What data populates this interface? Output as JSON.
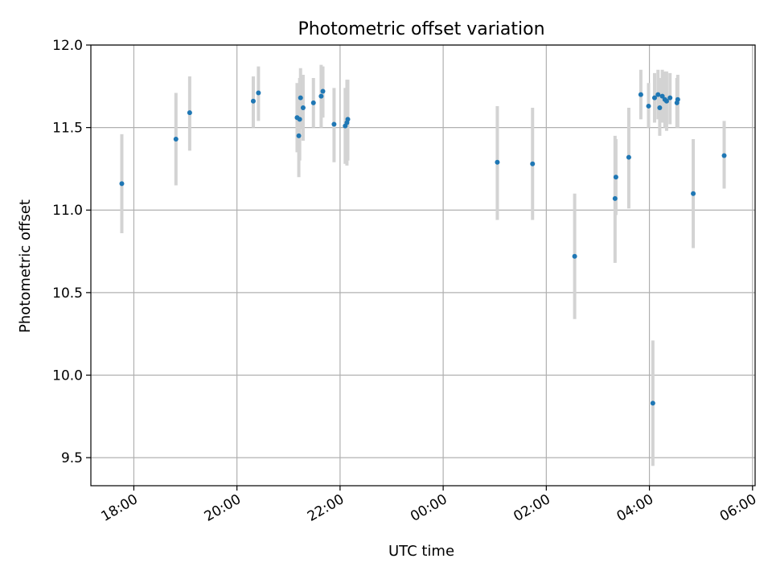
{
  "chart_data": {
    "type": "scatter",
    "title": "Photometric offset variation",
    "xlabel": "UTC time",
    "ylabel": "Photometric offset",
    "xlim": [
      "17:10",
      "30:03"
    ],
    "ylim": [
      9.33,
      12.0
    ],
    "xticks": [
      {
        "value": "18:00",
        "label": "18:00"
      },
      {
        "value": "20:00",
        "label": "20:00"
      },
      {
        "value": "22:00",
        "label": "22:00"
      },
      {
        "value": "24:00",
        "label": "00:00"
      },
      {
        "value": "26:00",
        "label": "02:00"
      },
      {
        "value": "28:00",
        "label": "04:00"
      },
      {
        "value": "30:00",
        "label": "06:00"
      }
    ],
    "yticks": [
      {
        "value": 9.5,
        "label": "9.5"
      },
      {
        "value": 10.0,
        "label": "10.0"
      },
      {
        "value": 10.5,
        "label": "10.5"
      },
      {
        "value": 11.0,
        "label": "11.0"
      },
      {
        "value": 11.5,
        "label": "11.5"
      },
      {
        "value": 12.0,
        "label": "12.0"
      }
    ],
    "grid": true,
    "colors": {
      "point": "#1f77b4",
      "errorbar": "#d3d3d3",
      "grid": "#b0b0b0"
    },
    "series": [
      {
        "points": [
          {
            "x": "17:46",
            "y": 11.16,
            "lo": 10.86,
            "hi": 11.46
          },
          {
            "x": "18:49",
            "y": 11.43,
            "lo": 11.15,
            "hi": 11.71
          },
          {
            "x": "19:05",
            "y": 11.59,
            "lo": 11.36,
            "hi": 11.81
          },
          {
            "x": "20:19",
            "y": 11.66,
            "lo": 11.5,
            "hi": 11.81
          },
          {
            "x": "20:25",
            "y": 11.71,
            "lo": 11.54,
            "hi": 11.87
          },
          {
            "x": "21:10",
            "y": 11.56,
            "lo": 11.35,
            "hi": 11.77
          },
          {
            "x": "21:12",
            "y": 11.45,
            "lo": 11.2,
            "hi": 11.7
          },
          {
            "x": "21:13",
            "y": 11.55,
            "lo": 11.3,
            "hi": 11.8
          },
          {
            "x": "21:14",
            "y": 11.68,
            "lo": 11.49,
            "hi": 11.86
          },
          {
            "x": "21:17",
            "y": 11.62,
            "lo": 11.42,
            "hi": 11.82
          },
          {
            "x": "21:29",
            "y": 11.65,
            "lo": 11.5,
            "hi": 11.8
          },
          {
            "x": "21:38",
            "y": 11.69,
            "lo": 11.5,
            "hi": 11.88
          },
          {
            "x": "21:40",
            "y": 11.72,
            "lo": 11.56,
            "hi": 11.87
          },
          {
            "x": "21:53",
            "y": 11.52,
            "lo": 11.29,
            "hi": 11.74
          },
          {
            "x": "22:06",
            "y": 11.51,
            "lo": 11.28,
            "hi": 11.74
          },
          {
            "x": "22:08",
            "y": 11.53,
            "lo": 11.27,
            "hi": 11.79
          },
          {
            "x": "22:09",
            "y": 11.55,
            "lo": 11.3,
            "hi": 11.79
          },
          {
            "x": "25:03",
            "y": 11.29,
            "lo": 10.94,
            "hi": 11.63
          },
          {
            "x": "25:44",
            "y": 11.28,
            "lo": 10.94,
            "hi": 11.62
          },
          {
            "x": "26:33",
            "y": 10.72,
            "lo": 10.34,
            "hi": 11.1
          },
          {
            "x": "27:20",
            "y": 11.07,
            "lo": 10.68,
            "hi": 11.45
          },
          {
            "x": "27:21",
            "y": 11.2,
            "lo": 10.97,
            "hi": 11.43
          },
          {
            "x": "27:36",
            "y": 11.32,
            "lo": 11.01,
            "hi": 11.62
          },
          {
            "x": "27:50",
            "y": 11.7,
            "lo": 11.55,
            "hi": 11.85
          },
          {
            "x": "27:59",
            "y": 11.63,
            "lo": 11.5,
            "hi": 11.77
          },
          {
            "x": "28:04",
            "y": 9.83,
            "lo": 9.45,
            "hi": 10.21
          },
          {
            "x": "28:06",
            "y": 11.68,
            "lo": 11.53,
            "hi": 11.83
          },
          {
            "x": "28:10",
            "y": 11.7,
            "lo": 11.55,
            "hi": 11.85
          },
          {
            "x": "28:12",
            "y": 11.62,
            "lo": 11.45,
            "hi": 11.8
          },
          {
            "x": "28:15",
            "y": 11.69,
            "lo": 11.53,
            "hi": 11.85
          },
          {
            "x": "28:18",
            "y": 11.67,
            "lo": 11.5,
            "hi": 11.84
          },
          {
            "x": "28:20",
            "y": 11.66,
            "lo": 11.48,
            "hi": 11.84
          },
          {
            "x": "28:24",
            "y": 11.68,
            "lo": 11.52,
            "hi": 11.83
          },
          {
            "x": "28:32",
            "y": 11.65,
            "lo": 11.5,
            "hi": 11.8
          },
          {
            "x": "28:33",
            "y": 11.67,
            "lo": 11.5,
            "hi": 11.82
          },
          {
            "x": "28:51",
            "y": 11.1,
            "lo": 10.77,
            "hi": 11.43
          },
          {
            "x": "29:27",
            "y": 11.33,
            "lo": 11.13,
            "hi": 11.54
          }
        ]
      }
    ]
  }
}
